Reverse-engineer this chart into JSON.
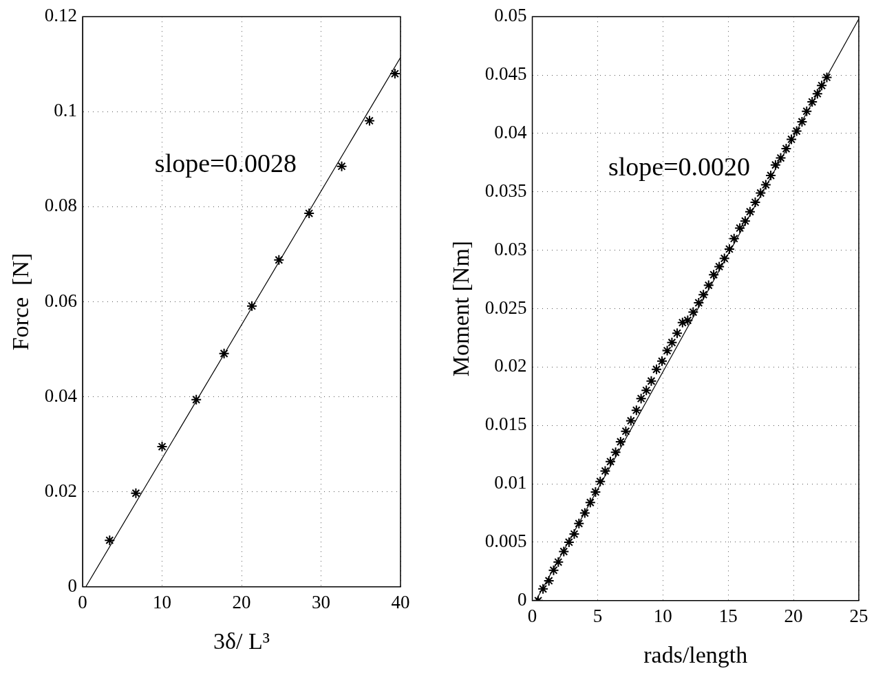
{
  "chart_data": [
    {
      "type": "scatter",
      "xlabel": "3δ/ L³",
      "ylabel": "Force  [N]",
      "xlim": [
        0,
        40
      ],
      "ylim": [
        0,
        0.12
      ],
      "xticks": [
        0,
        10,
        20,
        30,
        40
      ],
      "yticks": [
        0,
        0.02,
        0.04,
        0.06,
        0.08,
        0.1,
        0.12
      ],
      "grid": true,
      "annotations": [
        "slope=0.0028"
      ],
      "x": [
        3.4,
        6.7,
        10.0,
        14.3,
        17.8,
        21.3,
        24.7,
        28.5,
        32.6,
        36.1,
        39.3
      ],
      "series": [
        {
          "type": "scatter",
          "color": "#000000",
          "marker": "cross",
          "values": [
            0.0098,
            0.0197,
            0.0295,
            0.0394,
            0.0491,
            0.0591,
            0.0688,
            0.0786,
            0.0885,
            0.0981,
            0.108
          ]
        },
        {
          "type": "line",
          "color": "#000000",
          "marker": "none",
          "x": [
            0.4,
            40
          ],
          "values": [
            0,
            0.1114
          ]
        }
      ]
    },
    {
      "type": "scatter",
      "xlabel": "rads/length",
      "ylabel": "Moment [Nm]",
      "xlim": [
        0,
        25
      ],
      "ylim": [
        0,
        0.05
      ],
      "xticks": [
        0,
        5,
        10,
        15,
        20,
        25
      ],
      "yticks": [
        0,
        0.005,
        0.01,
        0.015,
        0.02,
        0.025,
        0.03,
        0.035,
        0.04,
        0.045,
        0.05
      ],
      "grid": true,
      "annotations": [
        "slope=0.0020"
      ],
      "x": [
        0.45,
        0.82,
        1.27,
        1.63,
        1.99,
        2.41,
        2.81,
        3.21,
        3.57,
        4.02,
        4.44,
        4.84,
        5.2,
        5.58,
        5.98,
        6.38,
        6.76,
        7.16,
        7.55,
        7.97,
        8.33,
        8.73,
        9.11,
        9.51,
        9.93,
        10.33,
        10.69,
        11.09,
        11.5,
        11.9,
        12.32,
        12.74,
        13.1,
        13.5,
        13.89,
        14.31,
        14.71,
        15.09,
        15.45,
        15.89,
        16.3,
        16.67,
        17.07,
        17.48,
        17.88,
        18.26,
        18.62,
        19.02,
        19.44,
        19.84,
        20.24,
        20.65,
        21.01,
        21.43,
        21.83,
        22.16,
        22.55
      ],
      "series": [
        {
          "type": "scatter",
          "color": "#000000",
          "marker": "cross",
          "values": [
            0.0,
            0.001,
            0.0017,
            0.0026,
            0.0033,
            0.0042,
            0.005,
            0.0057,
            0.0066,
            0.0075,
            0.0084,
            0.0093,
            0.0102,
            0.0111,
            0.0119,
            0.0127,
            0.0136,
            0.0145,
            0.0154,
            0.0163,
            0.0173,
            0.018,
            0.0188,
            0.0198,
            0.0205,
            0.0214,
            0.0221,
            0.0229,
            0.0238,
            0.024,
            0.0247,
            0.0255,
            0.0262,
            0.027,
            0.0279,
            0.0286,
            0.0293,
            0.0301,
            0.031,
            0.0319,
            0.0325,
            0.0333,
            0.0341,
            0.0349,
            0.0356,
            0.0364,
            0.0373,
            0.0379,
            0.0387,
            0.0395,
            0.0402,
            0.041,
            0.0419,
            0.0427,
            0.0434,
            0.0441,
            0.0448
          ]
        },
        {
          "type": "line",
          "color": "#000000",
          "marker": "none",
          "x": [
            0.27,
            25
          ],
          "values": [
            0,
            0.0498
          ]
        }
      ]
    }
  ]
}
